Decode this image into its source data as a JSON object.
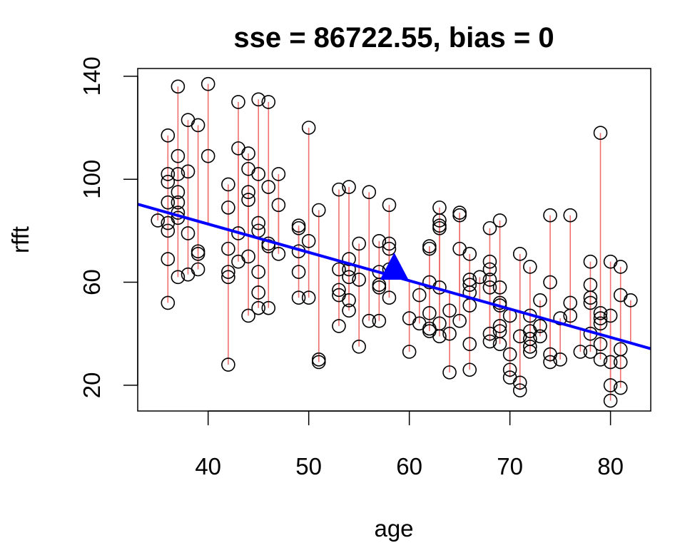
{
  "chart_data": {
    "type": "scatter",
    "title": "sse = 86722.55, bias = 0",
    "xlabel": "age",
    "ylabel": "rfft",
    "xlim": [
      33,
      84
    ],
    "ylim": [
      10,
      143
    ],
    "xticks": [
      40,
      50,
      60,
      70,
      80
    ],
    "yticks": [
      20,
      60,
      100,
      140
    ],
    "grid": false,
    "colors": {
      "points": "#000000",
      "residuals": "#f07070",
      "line": "#0000ff",
      "mean_marker": "#0000ff"
    },
    "regression_line": {
      "intercept": 126.6,
      "slope": -1.1
    },
    "mean_point": {
      "x": 58.5,
      "y": 64.3,
      "shape": "triangle"
    },
    "points": [
      [
        35,
        84
      ],
      [
        36,
        117
      ],
      [
        36,
        102
      ],
      [
        36,
        99
      ],
      [
        36,
        91
      ],
      [
        36,
        83
      ],
      [
        36,
        80
      ],
      [
        36,
        69
      ],
      [
        36,
        52
      ],
      [
        37,
        136
      ],
      [
        37,
        109
      ],
      [
        37,
        102
      ],
      [
        37,
        95
      ],
      [
        37,
        91
      ],
      [
        37,
        87
      ],
      [
        37,
        85
      ],
      [
        37,
        62
      ],
      [
        38,
        123
      ],
      [
        38,
        103
      ],
      [
        38,
        79
      ],
      [
        38,
        63
      ],
      [
        39,
        121
      ],
      [
        39,
        72
      ],
      [
        39,
        71
      ],
      [
        39,
        65
      ],
      [
        40,
        137
      ],
      [
        40,
        109
      ],
      [
        42,
        98
      ],
      [
        42,
        89
      ],
      [
        42,
        73
      ],
      [
        42,
        64
      ],
      [
        42,
        62
      ],
      [
        42,
        28
      ],
      [
        43,
        130
      ],
      [
        43,
        112
      ],
      [
        43,
        79
      ],
      [
        43,
        68
      ],
      [
        44,
        110
      ],
      [
        44,
        104
      ],
      [
        44,
        95
      ],
      [
        44,
        92
      ],
      [
        44,
        70
      ],
      [
        44,
        47
      ],
      [
        45,
        131
      ],
      [
        45,
        102
      ],
      [
        45,
        83
      ],
      [
        45,
        80
      ],
      [
        45,
        64
      ],
      [
        45,
        56
      ],
      [
        45,
        50
      ],
      [
        46,
        130
      ],
      [
        46,
        97
      ],
      [
        46,
        75
      ],
      [
        46,
        74
      ],
      [
        46,
        50
      ],
      [
        47,
        102
      ],
      [
        47,
        90
      ],
      [
        47,
        71
      ],
      [
        49,
        82
      ],
      [
        49,
        81
      ],
      [
        49,
        72
      ],
      [
        49,
        64
      ],
      [
        49,
        54
      ],
      [
        50,
        120
      ],
      [
        50,
        76
      ],
      [
        50,
        54
      ],
      [
        51,
        88
      ],
      [
        51,
        30
      ],
      [
        51,
        29
      ],
      [
        53,
        96
      ],
      [
        53,
        65
      ],
      [
        53,
        57
      ],
      [
        53,
        55
      ],
      [
        53,
        43
      ],
      [
        54,
        97
      ],
      [
        54,
        69
      ],
      [
        54,
        65
      ],
      [
        54,
        62
      ],
      [
        54,
        53
      ],
      [
        54,
        49
      ],
      [
        55,
        75
      ],
      [
        55,
        61
      ],
      [
        55,
        35
      ],
      [
        56,
        95
      ],
      [
        56,
        45
      ],
      [
        57,
        76
      ],
      [
        57,
        64
      ],
      [
        57,
        59
      ],
      [
        57,
        58
      ],
      [
        57,
        45
      ],
      [
        58,
        90
      ],
      [
        58,
        75
      ],
      [
        58,
        73
      ],
      [
        58,
        65
      ],
      [
        58,
        54
      ],
      [
        60,
        46
      ],
      [
        60,
        33
      ],
      [
        61,
        55
      ],
      [
        61,
        44
      ],
      [
        62,
        74
      ],
      [
        62,
        73
      ],
      [
        62,
        60
      ],
      [
        62,
        48
      ],
      [
        62,
        42
      ],
      [
        62,
        41
      ],
      [
        63,
        89
      ],
      [
        63,
        84
      ],
      [
        63,
        82
      ],
      [
        63,
        81
      ],
      [
        63,
        58
      ],
      [
        63,
        44
      ],
      [
        63,
        39
      ],
      [
        64,
        49
      ],
      [
        64,
        40
      ],
      [
        64,
        25
      ],
      [
        65,
        87
      ],
      [
        65,
        86
      ],
      [
        65,
        73
      ],
      [
        65,
        45
      ],
      [
        66,
        71
      ],
      [
        66,
        61
      ],
      [
        66,
        59
      ],
      [
        66,
        56
      ],
      [
        66,
        51
      ],
      [
        66,
        36
      ],
      [
        66,
        26
      ],
      [
        67,
        62
      ],
      [
        68,
        81
      ],
      [
        68,
        68
      ],
      [
        68,
        65
      ],
      [
        68,
        61
      ],
      [
        68,
        58
      ],
      [
        68,
        40
      ],
      [
        68,
        37
      ],
      [
        69,
        84
      ],
      [
        69,
        58
      ],
      [
        69,
        52
      ],
      [
        69,
        51
      ],
      [
        69,
        43
      ],
      [
        69,
        41
      ],
      [
        69,
        36
      ],
      [
        70,
        47
      ],
      [
        70,
        32
      ],
      [
        70,
        26
      ],
      [
        70,
        23
      ],
      [
        71,
        71
      ],
      [
        71,
        39
      ],
      [
        71,
        21
      ],
      [
        71,
        18
      ],
      [
        72,
        66
      ],
      [
        72,
        47
      ],
      [
        72,
        41
      ],
      [
        72,
        38
      ],
      [
        72,
        35
      ],
      [
        72,
        33
      ],
      [
        73,
        53
      ],
      [
        73,
        43
      ],
      [
        73,
        39
      ],
      [
        74,
        86
      ],
      [
        74,
        60
      ],
      [
        74,
        32
      ],
      [
        74,
        29
      ],
      [
        75,
        46
      ],
      [
        75,
        30
      ],
      [
        76,
        86
      ],
      [
        76,
        52
      ],
      [
        76,
        47
      ],
      [
        77,
        33
      ],
      [
        78,
        68
      ],
      [
        78,
        59
      ],
      [
        78,
        54
      ],
      [
        78,
        52
      ],
      [
        78,
        40
      ],
      [
        78,
        33
      ],
      [
        79,
        118
      ],
      [
        79,
        48
      ],
      [
        79,
        46
      ],
      [
        79,
        44
      ],
      [
        79,
        36
      ],
      [
        79,
        30
      ],
      [
        80,
        68
      ],
      [
        80,
        47
      ],
      [
        80,
        29
      ],
      [
        80,
        20
      ],
      [
        80,
        14
      ],
      [
        81,
        66
      ],
      [
        81,
        55
      ],
      [
        81,
        34
      ],
      [
        81,
        29
      ],
      [
        81,
        19
      ],
      [
        82,
        53
      ]
    ]
  }
}
